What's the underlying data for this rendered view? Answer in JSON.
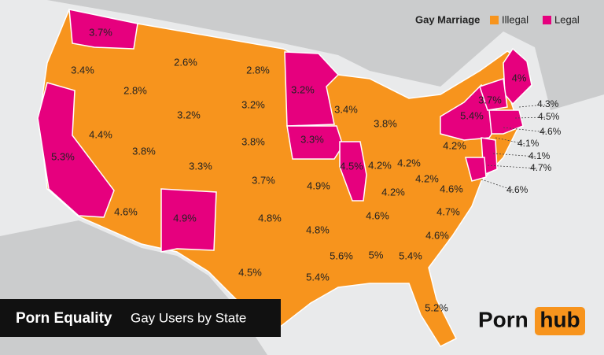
{
  "legend": {
    "title": "Gay Marriage",
    "items": [
      {
        "label": "Illegal",
        "color": "#f7941d"
      },
      {
        "label": "Legal",
        "color": "#e6007e"
      }
    ]
  },
  "title": {
    "main": "Porn Equality",
    "sub": "Gay Users by State"
  },
  "logo": {
    "left": "Porn",
    "right": "hub"
  },
  "states": [
    {
      "label": "3.7%",
      "legal": true
    },
    {
      "label": "3.4%",
      "legal": false
    },
    {
      "label": "5.3%",
      "legal": true
    },
    {
      "label": "4.4%",
      "legal": false
    },
    {
      "label": "2.8%",
      "legal": false
    },
    {
      "label": "2.6%",
      "legal": false
    },
    {
      "label": "3.2%",
      "legal": false
    },
    {
      "label": "3.8%",
      "legal": false
    },
    {
      "label": "4.6%",
      "legal": false
    },
    {
      "label": "4.9%",
      "legal": true
    },
    {
      "label": "3.3%",
      "legal": false
    },
    {
      "label": "2.8%",
      "legal": false
    },
    {
      "label": "3.2%",
      "legal": false
    },
    {
      "label": "3.8%",
      "legal": false
    },
    {
      "label": "3.7%",
      "legal": false
    },
    {
      "label": "4.8%",
      "legal": false
    },
    {
      "label": "4.5%",
      "legal": false
    },
    {
      "label": "3.2%",
      "legal": true
    },
    {
      "label": "3.3%",
      "legal": true
    },
    {
      "label": "4.9%",
      "legal": false
    },
    {
      "label": "4.8%",
      "legal": false
    },
    {
      "label": "5.4%",
      "legal": false
    },
    {
      "label": "3.4%",
      "legal": false
    },
    {
      "label": "4.5%",
      "legal": true
    },
    {
      "label": "3.8%",
      "legal": false
    },
    {
      "label": "4.2%",
      "legal": false
    },
    {
      "label": "4.2%",
      "legal": false
    },
    {
      "label": "4.2%",
      "legal": false
    },
    {
      "label": "4.6%",
      "legal": false
    },
    {
      "label": "5.6%",
      "legal": false
    },
    {
      "label": "5%",
      "legal": false
    },
    {
      "label": "5.4%",
      "legal": false
    },
    {
      "label": "5.2%",
      "legal": false
    },
    {
      "label": "4.6%",
      "legal": false
    },
    {
      "label": "4.7%",
      "legal": false
    },
    {
      "label": "4.6%",
      "legal": false
    },
    {
      "label": "4.2%",
      "legal": false
    },
    {
      "label": "4.2%",
      "legal": false
    },
    {
      "label": "5.4%",
      "legal": true
    },
    {
      "label": "4%",
      "legal": true
    },
    {
      "label": "3.7%",
      "legal": true
    },
    {
      "label": "4.3%",
      "legal": true
    },
    {
      "label": "4.5%",
      "legal": true
    },
    {
      "label": "4.6%",
      "legal": true
    },
    {
      "label": "4.1%",
      "legal": true
    },
    {
      "label": "4.1%",
      "legal": true
    },
    {
      "label": "4.7%",
      "legal": true
    },
    {
      "label": "4.6%",
      "legal": true
    }
  ]
}
